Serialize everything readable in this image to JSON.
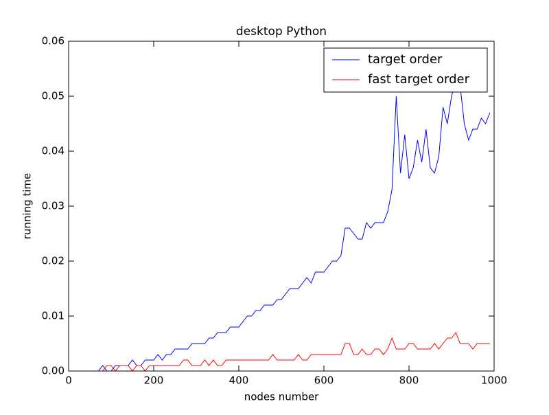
{
  "chart_data": {
    "type": "line",
    "title": "desktop Python",
    "x_label": "nodes number",
    "y_label": "running time",
    "x": [
      0,
      10,
      20,
      30,
      40,
      50,
      60,
      70,
      80,
      90,
      100,
      110,
      120,
      130,
      140,
      150,
      160,
      170,
      180,
      190,
      200,
      210,
      220,
      230,
      240,
      250,
      260,
      270,
      280,
      290,
      300,
      310,
      320,
      330,
      340,
      350,
      360,
      370,
      380,
      390,
      400,
      410,
      420,
      430,
      440,
      450,
      460,
      470,
      480,
      490,
      500,
      510,
      520,
      530,
      540,
      550,
      560,
      570,
      580,
      590,
      600,
      610,
      620,
      630,
      640,
      650,
      660,
      670,
      680,
      690,
      700,
      710,
      720,
      730,
      740,
      750,
      760,
      770,
      780,
      790,
      800,
      810,
      820,
      830,
      840,
      850,
      860,
      870,
      880,
      890,
      900,
      910,
      920,
      930,
      940,
      950,
      960,
      970,
      980,
      990
    ],
    "series": [
      {
        "name": "target order",
        "color": "#0000ff",
        "values": [
          0,
          0,
          0,
          0,
          0,
          0,
          0,
          0,
          0.001,
          0,
          0,
          0.001,
          0.001,
          0.001,
          0.001,
          0.002,
          0.001,
          0.001,
          0.002,
          0.002,
          0.002,
          0.003,
          0.002,
          0.003,
          0.003,
          0.004,
          0.004,
          0.004,
          0.004,
          0.005,
          0.005,
          0.005,
          0.005,
          0.006,
          0.006,
          0.007,
          0.007,
          0.007,
          0.008,
          0.008,
          0.008,
          0.009,
          0.01,
          0.01,
          0.011,
          0.011,
          0.012,
          0.012,
          0.012,
          0.013,
          0.013,
          0.014,
          0.015,
          0.015,
          0.015,
          0.016,
          0.017,
          0.016,
          0.018,
          0.018,
          0.018,
          0.019,
          0.02,
          0.02,
          0.021,
          0.026,
          0.026,
          0.025,
          0.024,
          0.024,
          0.027,
          0.026,
          0.027,
          0.027,
          0.027,
          0.029,
          0.033,
          0.05,
          0.036,
          0.043,
          0.035,
          0.037,
          0.042,
          0.038,
          0.044,
          0.037,
          0.036,
          0.039,
          0.048,
          0.045,
          0.05,
          0.053,
          0.052,
          0.045,
          0.042,
          0.044,
          0.044,
          0.046,
          0.045,
          0.047
        ]
      },
      {
        "name": "fast target order",
        "color": "#ff0000",
        "values": [
          0,
          0,
          0,
          0,
          0,
          0,
          0,
          0,
          0,
          0.001,
          0.001,
          0,
          0.001,
          0.001,
          0.001,
          0,
          0.001,
          0.001,
          0,
          0.001,
          0.001,
          0.001,
          0.001,
          0.001,
          0.001,
          0.001,
          0.001,
          0.002,
          0.002,
          0.001,
          0.001,
          0.001,
          0.002,
          0.001,
          0.002,
          0.001,
          0.001,
          0.002,
          0.002,
          0.002,
          0.002,
          0.002,
          0.002,
          0.002,
          0.002,
          0.002,
          0.002,
          0.002,
          0.003,
          0.002,
          0.002,
          0.002,
          0.002,
          0.002,
          0.003,
          0.002,
          0.002,
          0.003,
          0.003,
          0.003,
          0.003,
          0.003,
          0.003,
          0.003,
          0.003,
          0.005,
          0.005,
          0.003,
          0.003,
          0.004,
          0.003,
          0.003,
          0.004,
          0.004,
          0.003,
          0.004,
          0.006,
          0.004,
          0.004,
          0.004,
          0.005,
          0.005,
          0.004,
          0.004,
          0.004,
          0.004,
          0.005,
          0.004,
          0.005,
          0.006,
          0.006,
          0.007,
          0.005,
          0.005,
          0.005,
          0.004,
          0.005,
          0.005,
          0.005,
          0.005
        ]
      }
    ],
    "xlim": [
      0,
      1000
    ],
    "xticks": [
      0,
      200,
      400,
      600,
      800,
      1000
    ],
    "ylim": [
      0,
      0.06
    ],
    "yticks": [
      {
        "value": 0,
        "label": "0.00"
      },
      0.01,
      0.02,
      0.03,
      0.04,
      0.05,
      0.06
    ],
    "legend": "upper right",
    "grid": false
  }
}
